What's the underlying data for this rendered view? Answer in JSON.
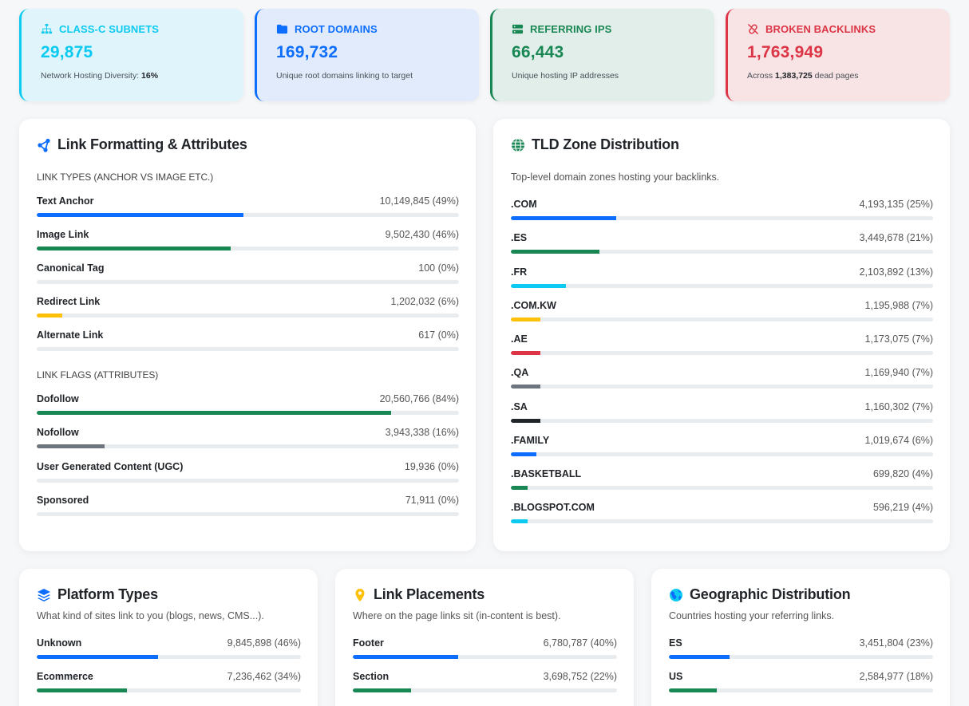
{
  "colors": {
    "blue": "#0d6efd",
    "green": "#198754",
    "cyan": "#0dcaf0",
    "yellow": "#ffc107",
    "red": "#dc3545",
    "gray": "#6c757d",
    "dark": "#212529"
  },
  "stats": [
    {
      "title": "CLASS-C SUBNETS",
      "value": "29,875",
      "sub_prefix": "Network Hosting Diversity: ",
      "sub_bold": "16%",
      "sub_suffix": "",
      "icon": "network-icon"
    },
    {
      "title": "ROOT DOMAINS",
      "value": "169,732",
      "sub_prefix": "Unique root domains linking to target",
      "sub_bold": "",
      "sub_suffix": "",
      "icon": "folder-icon"
    },
    {
      "title": "REFERRING IPS",
      "value": "66,443",
      "sub_prefix": "Unique hosting IP addresses",
      "sub_bold": "",
      "sub_suffix": "",
      "icon": "server-icon"
    },
    {
      "title": "BROKEN BACKLINKS",
      "value": "1,763,949",
      "sub_prefix": "Across ",
      "sub_bold": "1,383,725",
      "sub_suffix": " dead pages",
      "icon": "broken-link-icon"
    }
  ],
  "link_formatting": {
    "title": "Link Formatting & Attributes",
    "types_label": "LINK TYPES (ANCHOR VS IMAGE ETC.)",
    "types": [
      {
        "label": "Text Anchor",
        "value": "10,149,845 (49%)",
        "pct": 49,
        "color": "blue"
      },
      {
        "label": "Image Link",
        "value": "9,502,430 (46%)",
        "pct": 46,
        "color": "green"
      },
      {
        "label": "Canonical Tag",
        "value": "100 (0%)",
        "pct": 0,
        "color": "blue"
      },
      {
        "label": "Redirect Link",
        "value": "1,202,032 (6%)",
        "pct": 6,
        "color": "yellow"
      },
      {
        "label": "Alternate Link",
        "value": "617 (0%)",
        "pct": 0,
        "color": "blue"
      }
    ],
    "flags_label": "LINK FLAGS (ATTRIBUTES)",
    "flags": [
      {
        "label": "Dofollow",
        "value": "20,560,766 (84%)",
        "pct": 84,
        "color": "green"
      },
      {
        "label": "Nofollow",
        "value": "3,943,338 (16%)",
        "pct": 16,
        "color": "gray"
      },
      {
        "label": "User Generated Content (UGC)",
        "value": "19,936 (0%)",
        "pct": 0,
        "color": "blue"
      },
      {
        "label": "Sponsored",
        "value": "71,911 (0%)",
        "pct": 0,
        "color": "blue"
      }
    ]
  },
  "tld": {
    "title": "TLD Zone Distribution",
    "desc": "Top-level domain zones hosting your backlinks.",
    "items": [
      {
        "label": ".COM",
        "value": "4,193,135 (25%)",
        "pct": 25,
        "color": "blue"
      },
      {
        "label": ".ES",
        "value": "3,449,678 (21%)",
        "pct": 21,
        "color": "green"
      },
      {
        "label": ".FR",
        "value": "2,103,892 (13%)",
        "pct": 13,
        "color": "cyan"
      },
      {
        "label": ".COM.KW",
        "value": "1,195,988 (7%)",
        "pct": 7,
        "color": "yellow"
      },
      {
        "label": ".AE",
        "value": "1,173,075 (7%)",
        "pct": 7,
        "color": "red"
      },
      {
        "label": ".QA",
        "value": "1,169,940 (7%)",
        "pct": 7,
        "color": "gray"
      },
      {
        "label": ".SA",
        "value": "1,160,302 (7%)",
        "pct": 7,
        "color": "dark"
      },
      {
        "label": ".FAMILY",
        "value": "1,019,674 (6%)",
        "pct": 6,
        "color": "blue"
      },
      {
        "label": ".BASKETBALL",
        "value": "699,820 (4%)",
        "pct": 4,
        "color": "green"
      },
      {
        "label": ".BLOGSPOT.COM",
        "value": "596,219 (4%)",
        "pct": 4,
        "color": "cyan"
      }
    ]
  },
  "platforms": {
    "title": "Platform Types",
    "desc": "What kind of sites link to you (blogs, news, CMS...).",
    "items": [
      {
        "label": "Unknown",
        "value": "9,845,898 (46%)",
        "pct": 46,
        "color": "blue"
      },
      {
        "label": "Ecommerce",
        "value": "7,236,462 (34%)",
        "pct": 34,
        "color": "green"
      }
    ]
  },
  "placements": {
    "title": "Link Placements",
    "desc": "Where on the page links sit (in-content is best).",
    "items": [
      {
        "label": "Footer",
        "value": "6,780,787 (40%)",
        "pct": 40,
        "color": "blue"
      },
      {
        "label": "Section",
        "value": "3,698,752 (22%)",
        "pct": 22,
        "color": "green"
      }
    ]
  },
  "geo": {
    "title": "Geographic Distribution",
    "desc": "Countries hosting your referring links.",
    "items": [
      {
        "label": "ES",
        "value": "3,451,804 (23%)",
        "pct": 23,
        "color": "blue"
      },
      {
        "label": "US",
        "value": "2,584,977 (18%)",
        "pct": 18,
        "color": "green"
      }
    ]
  }
}
